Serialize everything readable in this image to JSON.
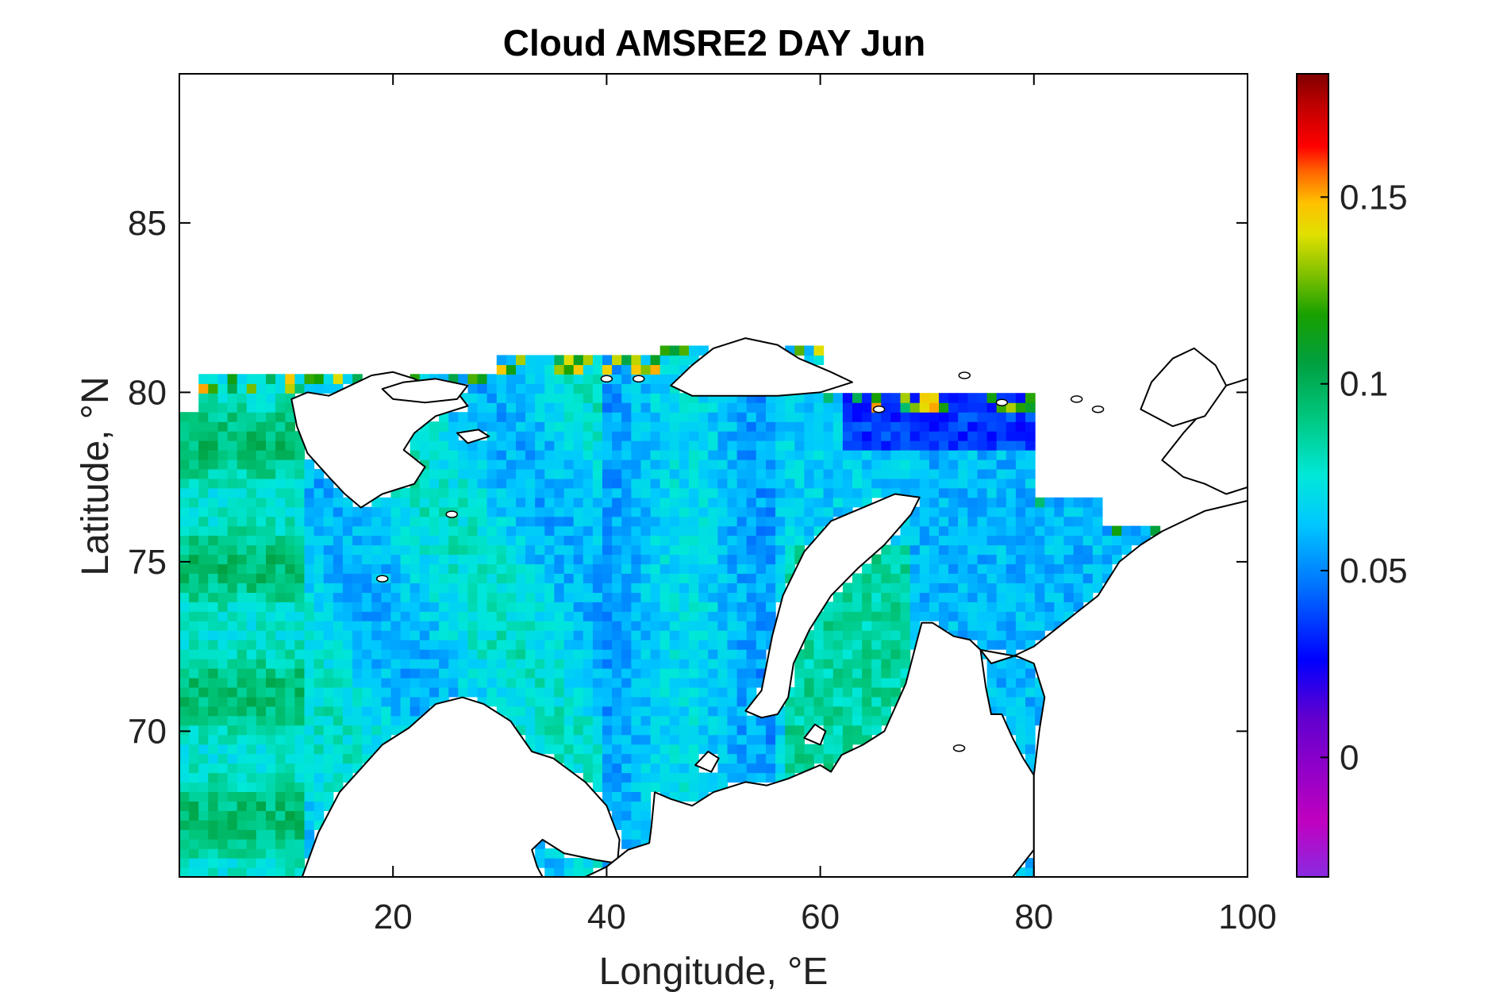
{
  "chart_data": {
    "type": "heatmap",
    "title": "Cloud AMSRE2 DAY Jun",
    "xlabel": "Longitude, °E",
    "ylabel": "Latitude, °N",
    "xlim": [
      0,
      100
    ],
    "ylim": [
      65.7,
      89.4
    ],
    "x_ticks": [
      20,
      40,
      60,
      80,
      100
    ],
    "x_tick_labels": [
      "20",
      "40",
      "60",
      "80",
      "100"
    ],
    "y_ticks": [
      70,
      75,
      80,
      85
    ],
    "y_tick_labels": [
      "70",
      "75",
      "80",
      "85"
    ],
    "colorbar": {
      "range": [
        -0.032,
        0.183
      ],
      "ticks": [
        0,
        0.05,
        0.1,
        0.15
      ],
      "tick_labels": [
        "0",
        "0.05",
        "0.1",
        "0.15"
      ],
      "colormap": [
        "#8a2be2",
        "#c000c0",
        "#6000d0",
        "#0000ff",
        "#0070ff",
        "#00c8ff",
        "#00e8d8",
        "#00c880",
        "#00a040",
        "#18a000",
        "#80c000",
        "#e0e000",
        "#ffc000",
        "#ff6000",
        "#ff0000",
        "#c00000",
        "#800000"
      ]
    },
    "grid": false,
    "legend": "none",
    "colors": {
      "land_outline": "#000000",
      "no_data": "#ffffff"
    }
  }
}
